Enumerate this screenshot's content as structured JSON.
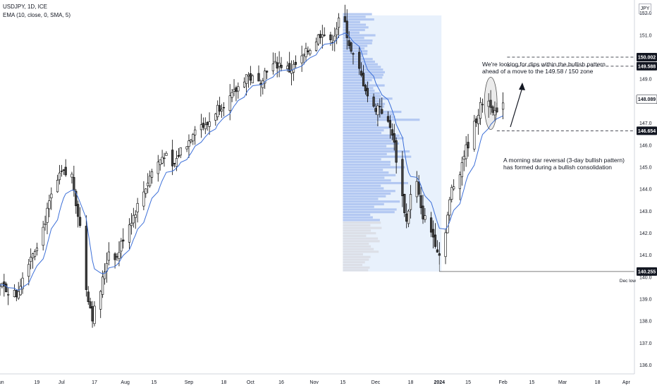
{
  "header": {
    "title": "USDJPY, 1D, ICE",
    "indicator": "EMA (10, close, 0, SMA, 5)",
    "currency": "JPY"
  },
  "annotations": {
    "top_note_line1": "We're looking for dips within the bullish pattern",
    "top_note_line2": "ahead of a move to the 149.58 / 150 zone",
    "bottom_note_line1": "A morning star reversal (3-day bullish pattern)",
    "bottom_note_line2": "has formed during a bullish consolidation",
    "dec_low_label": "Dec low"
  },
  "colors": {
    "candle_up_fill": "#ffffff",
    "candle_down_fill": "#424242",
    "candle_border": "#000000",
    "ema": "#3c6fd8",
    "volume_profile": "#a9c1f0",
    "volume_profile_low": "#d9dce3",
    "profile_bg": "#e8f1fc",
    "grid": "#f0f3fa"
  },
  "chart_data": {
    "type": "candlestick",
    "title": "USDJPY, 1D, ICE",
    "ylim": [
      135.6,
      152.6
    ],
    "y_ticks": [
      136.0,
      137.0,
      138.0,
      139.0,
      140.0,
      141.0,
      142.0,
      143.0,
      144.0,
      145.0,
      146.0,
      147.0,
      148.0,
      149.0,
      150.0,
      151.0,
      152.0
    ],
    "x_labels": [
      {
        "label": "Jun",
        "day": 0
      },
      {
        "label": "19",
        "day": 18
      },
      {
        "label": "Jul",
        "day": 30
      },
      {
        "label": "17",
        "day": 46
      },
      {
        "label": "Aug",
        "day": 61
      },
      {
        "label": "15",
        "day": 75
      },
      {
        "label": "Sep",
        "day": 92
      },
      {
        "label": "18",
        "day": 109
      },
      {
        "label": "Oct",
        "day": 122
      },
      {
        "label": "16",
        "day": 137
      },
      {
        "label": "Nov",
        "day": 153
      },
      {
        "label": "15",
        "day": 167
      },
      {
        "label": "Dec",
        "day": 183
      },
      {
        "label": "18",
        "day": 200
      },
      {
        "label": "2024",
        "day": 214
      },
      {
        "label": "15",
        "day": 228
      },
      {
        "label": "Feb",
        "day": 245
      },
      {
        "label": "15",
        "day": 259
      },
      {
        "label": "Mar",
        "day": 274
      },
      {
        "label": "18",
        "day": 291
      },
      {
        "label": "Apr",
        "day": 305
      }
    ],
    "x_range_days": [
      0,
      309
    ],
    "series": [
      {
        "name": "USDJPY",
        "anchors": [
          {
            "day": 0,
            "close": 139.6
          },
          {
            "day": 8,
            "close": 139.2
          },
          {
            "day": 14,
            "close": 140.8
          },
          {
            "day": 20,
            "close": 141.9
          },
          {
            "day": 26,
            "close": 144.0
          },
          {
            "day": 30,
            "close": 144.7
          },
          {
            "day": 35,
            "close": 144.6
          },
          {
            "day": 39,
            "close": 142.3
          },
          {
            "day": 42,
            "close": 139.5
          },
          {
            "day": 45,
            "close": 138.2
          },
          {
            "day": 49,
            "close": 139.4
          },
          {
            "day": 53,
            "close": 141.2
          },
          {
            "day": 57,
            "close": 140.9
          },
          {
            "day": 61,
            "close": 142.1
          },
          {
            "day": 65,
            "close": 142.8
          },
          {
            "day": 70,
            "close": 143.9
          },
          {
            "day": 74,
            "close": 144.8
          },
          {
            "day": 80,
            "close": 145.6
          },
          {
            "day": 84,
            "close": 144.9
          },
          {
            "day": 88,
            "close": 145.8
          },
          {
            "day": 92,
            "close": 146.2
          },
          {
            "day": 96,
            "close": 147.1
          },
          {
            "day": 100,
            "close": 146.8
          },
          {
            "day": 106,
            "close": 147.7
          },
          {
            "day": 113,
            "close": 148.2
          },
          {
            "day": 120,
            "close": 149.2
          },
          {
            "day": 126,
            "close": 148.8
          },
          {
            "day": 130,
            "close": 149.5
          },
          {
            "day": 136,
            "close": 149.7
          },
          {
            "day": 141,
            "close": 149.4
          },
          {
            "day": 146,
            "close": 149.8
          },
          {
            "day": 150,
            "close": 150.3
          },
          {
            "day": 154,
            "close": 150.8
          },
          {
            "day": 157,
            "close": 151.2
          },
          {
            "day": 161,
            "close": 150.6
          },
          {
            "day": 165,
            "close": 151.6
          },
          {
            "day": 168,
            "close": 151.5
          },
          {
            "day": 171,
            "close": 150.2
          },
          {
            "day": 174,
            "close": 149.6
          },
          {
            "day": 178,
            "close": 148.6
          },
          {
            "day": 181,
            "close": 147.6
          },
          {
            "day": 185,
            "close": 147.8
          },
          {
            "day": 188,
            "close": 147.1
          },
          {
            "day": 191,
            "close": 146.6
          },
          {
            "day": 195,
            "close": 144.2
          },
          {
            "day": 198,
            "close": 142.5
          },
          {
            "day": 202,
            "close": 144.9
          },
          {
            "day": 205,
            "close": 143.0
          },
          {
            "day": 209,
            "close": 142.3
          },
          {
            "day": 212,
            "close": 141.6
          },
          {
            "day": 214,
            "close": 141.0
          },
          {
            "day": 217,
            "close": 142.2
          },
          {
            "day": 220,
            "close": 144.0
          },
          {
            "day": 223,
            "close": 144.5
          },
          {
            "day": 226,
            "close": 145.6
          },
          {
            "day": 229,
            "close": 146.3
          },
          {
            "day": 233,
            "close": 147.5
          },
          {
            "day": 236,
            "close": 148.2
          },
          {
            "day": 239,
            "close": 147.9
          },
          {
            "day": 242,
            "close": 147.3
          },
          {
            "day": 245,
            "close": 148.1
          }
        ]
      }
    ],
    "ema": {
      "name": "EMA (10, close, 0, SMA, 5)",
      "period": 10
    },
    "volume_profile": {
      "day_start": 167,
      "day_end": 215,
      "price_low": 140.255,
      "price_high": 151.9
    },
    "price_labels": [
      {
        "value": 150.002,
        "label": "150.002",
        "style": "outline"
      },
      {
        "value": 149.588,
        "label": "149.588",
        "style": "outline"
      },
      {
        "value": 148.089,
        "label": "148.089",
        "style": "filled"
      },
      {
        "value": 146.654,
        "label": "146.654",
        "style": "outline"
      },
      {
        "value": 140.255,
        "label": "140.255",
        "style": "outline"
      }
    ],
    "dashed_levels": [
      150.002,
      149.588,
      146.654
    ],
    "solid_levels": [
      140.255
    ],
    "grid": false,
    "legend": "top-left"
  }
}
